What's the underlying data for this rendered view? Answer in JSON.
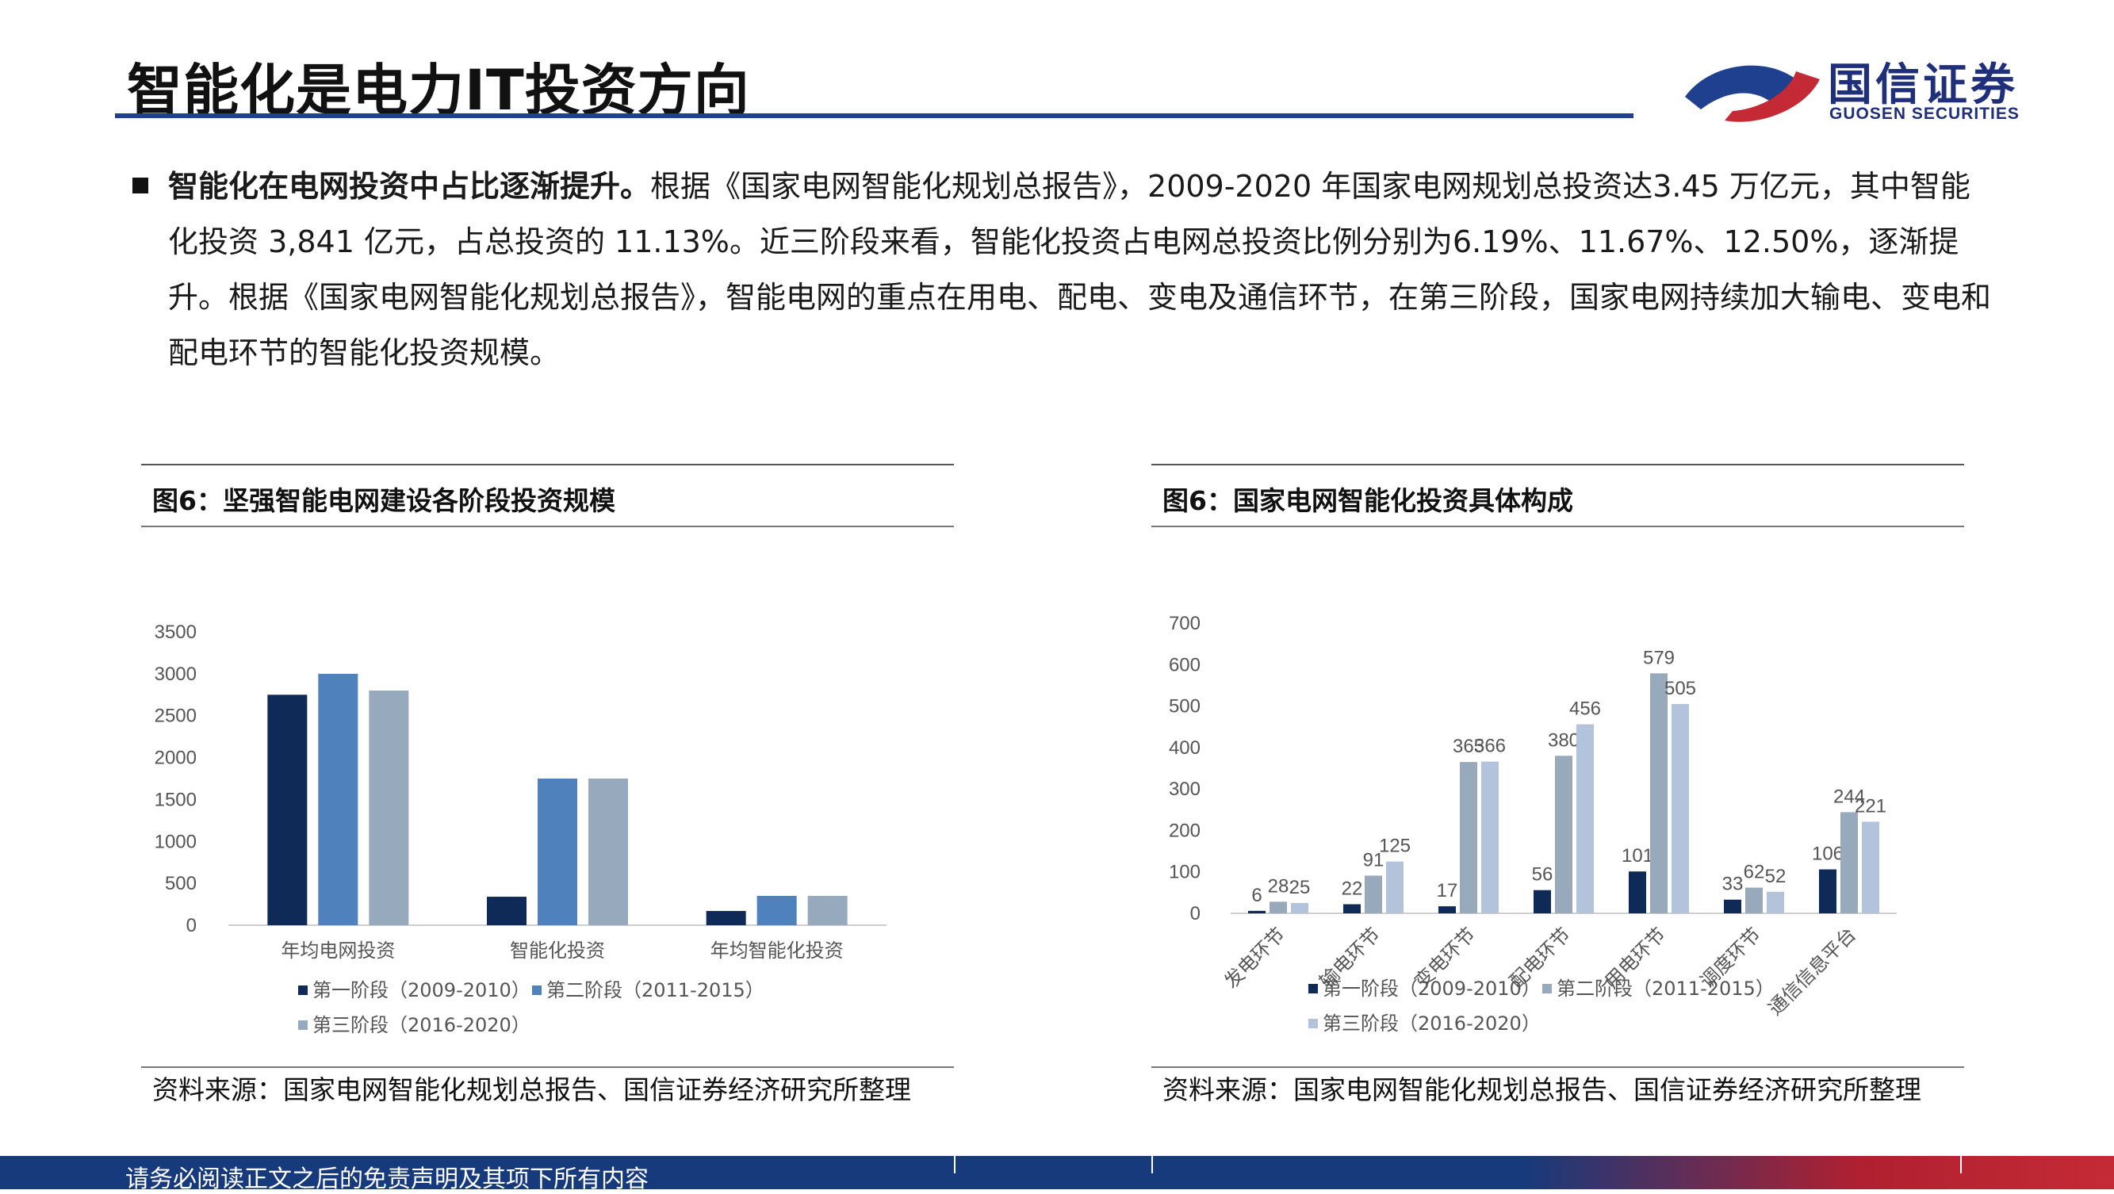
{
  "header": {
    "title": "智能化是电力IT投资方向",
    "logo_cn": "国信证券",
    "logo_en": "GUOSEN SECURITIES"
  },
  "body": {
    "lead": "智能化在电网投资中占比逐渐提升。",
    "text": "根据《国家电网智能化规划总报告》，2009-2020 年国家电网规划总投资达3.45 万亿元，其中智能化投资 3,841 亿元，占总投资的 11.13%。近三阶段来看，智能化投资占电网总投资比例分别为6.19%、11.67%、12.50%，逐渐提升。根据《国家电网智能化规划总报告》，智能电网的重点在用电、配电、变电及通信环节，在第三阶段，国家电网持续加大输电、变电和配电环节的智能化投资规模。"
  },
  "figure_left": {
    "title": "图6：坚强智能电网建设各阶段投资规模",
    "source": "资料来源：国家电网智能化规划总报告、国信证券经济研究所整理"
  },
  "figure_right": {
    "title": "图6：国家电网智能化投资具体构成",
    "source": "资料来源：国家电网智能化规划总报告、国信证券经济研究所整理"
  },
  "footer": {
    "disclaimer": "请务必阅读正文之后的免责声明及其项下所有内容"
  },
  "colors": {
    "stage1": "#0f2a56",
    "stage2_left": "#4f81bd",
    "stage3_left": "#97a9bd",
    "stage2_right": "#98a9bb",
    "stage3_right": "#b4c3dc",
    "brand_blue": "#1f3f8f",
    "brand_red": "#c42a35"
  },
  "chart_data": [
    {
      "type": "bar",
      "categories": [
        "年均电网投资",
        "智能化投资",
        "年均智能化投资"
      ],
      "series": [
        {
          "name": "第一阶段（2009-2010）",
          "values": [
            2750,
            340,
            170
          ]
        },
        {
          "name": "第二阶段（2011-2015）",
          "values": [
            3000,
            1750,
            350
          ]
        },
        {
          "name": "第三阶段（2016-2020）",
          "values": [
            2800,
            1750,
            350
          ]
        }
      ],
      "ylim": [
        0,
        3500
      ],
      "yticks": [
        0,
        500,
        1000,
        1500,
        2000,
        2500,
        3000,
        3500
      ],
      "xlabel": "",
      "ylabel": "",
      "grid": false,
      "legend_position": "bottom"
    },
    {
      "type": "bar",
      "categories": [
        "发电环节",
        "输电环节",
        "变电环节",
        "配电环节",
        "用电环节",
        "调度环节",
        "通信信息平台"
      ],
      "series": [
        {
          "name": "第一阶段（2009-2010）",
          "values": [
            6,
            22,
            17,
            56,
            101,
            33,
            106
          ]
        },
        {
          "name": "第二阶段（2011-2015）",
          "values": [
            28,
            91,
            365,
            380,
            579,
            62,
            244
          ]
        },
        {
          "name": "第三阶段（2016-2020）",
          "values": [
            25,
            125,
            366,
            456,
            505,
            52,
            221
          ]
        }
      ],
      "ylim": [
        0,
        700
      ],
      "yticks": [
        0,
        100,
        200,
        300,
        400,
        500,
        600,
        700
      ],
      "xlabel": "",
      "ylabel": "",
      "data_labels": true,
      "grid": false,
      "legend_position": "bottom"
    }
  ]
}
